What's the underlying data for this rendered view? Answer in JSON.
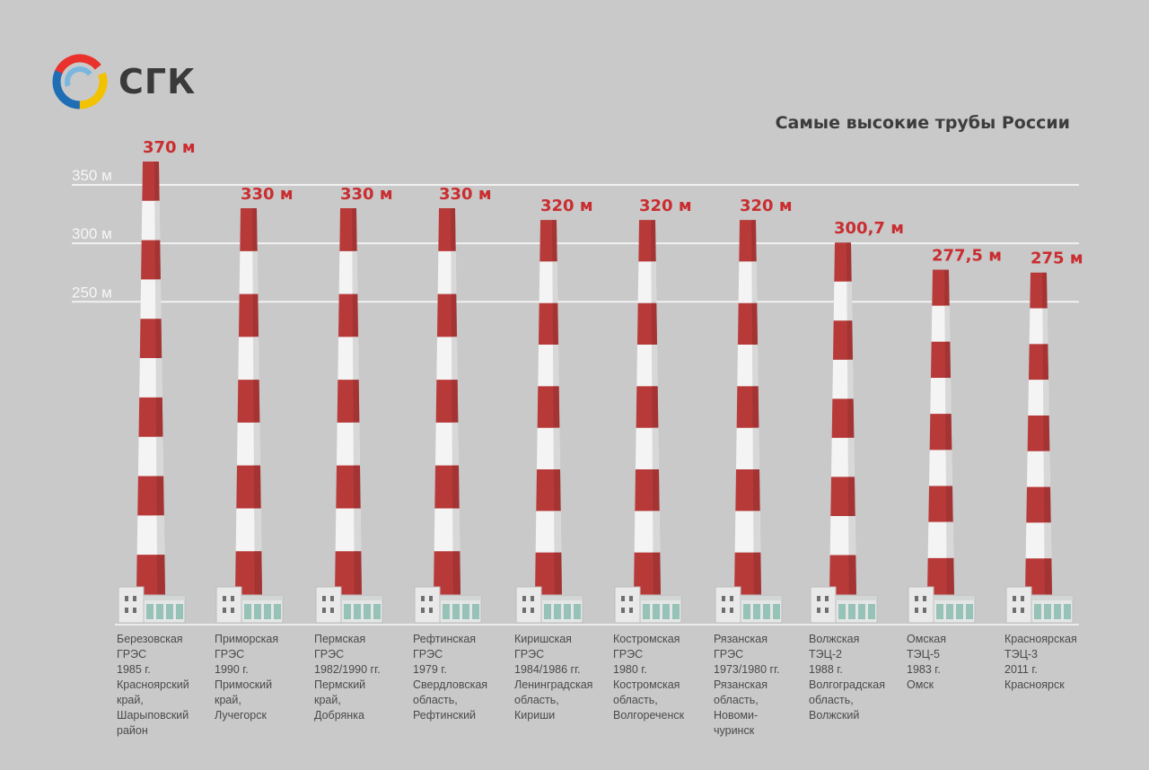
{
  "brand": {
    "name": "СГК",
    "logo_colors": [
      "#e8322b",
      "#1f6db5",
      "#f2c200",
      "#7ab7de"
    ]
  },
  "chart_data": {
    "type": "bar",
    "title": "Самые высокие трубы России",
    "ylim": [
      0,
      370
    ],
    "yticks": [
      {
        "value": 250,
        "label": "250 м"
      },
      {
        "value": 300,
        "label": "300 м"
      },
      {
        "value": 350,
        "label": "350 м"
      }
    ],
    "grid": true,
    "colors": {
      "band_red": "#b73a39",
      "band_white": "#f4f4f4",
      "value_label": "#c92d30",
      "grid": "#f1f1f1",
      "axis_label": "#f6f6f6"
    },
    "series": [
      {
        "values": [
          370,
          330,
          330,
          330,
          320,
          320,
          320,
          300.7,
          277.5,
          275
        ],
        "value_labels": [
          "370 м",
          "330 м",
          "330 м",
          "330 м",
          "320 м",
          "320 м",
          "320 м",
          "300,7 м",
          "277,5 м",
          "275 м"
        ]
      }
    ],
    "categories": [
      "Березовская\nГРЭС\n1985 г.\nКрасноярский\nкрай,\nШарыповский\nрайон",
      "Приморская\nГРЭС\n1990 г.\nПримоский\nкрай,\nЛучегорск",
      "Пермская\nГРЭС\n1982/1990 гг.\nПермский\nкрай,\nДобрянка",
      "Рефтинская\nГРЭС\n1979 г.\nСвердловская\nобласть,\nРефтинский",
      "Киришская\nГРЭС\n1984/1986 гг.\nЛенинградская\nобласть,\nКириши",
      "Костромская\nГРЭС\n1980 г.\nКостромская\nобласть,\nВолгореченск",
      "Рязанская\nГРЭС\n1973/1980 гг.\nРязанская\nобласть,\nНовоми-\nчуринск",
      "Волжская\nТЭЦ-2\n1988 г.\nВолгоградская\nобласть,\nВолжский",
      "Омская\nТЭЦ-5\n1983 г.\nОмск",
      "Красноярская\nТЭЦ-3\n2011 г.\nКрасноярск"
    ]
  }
}
